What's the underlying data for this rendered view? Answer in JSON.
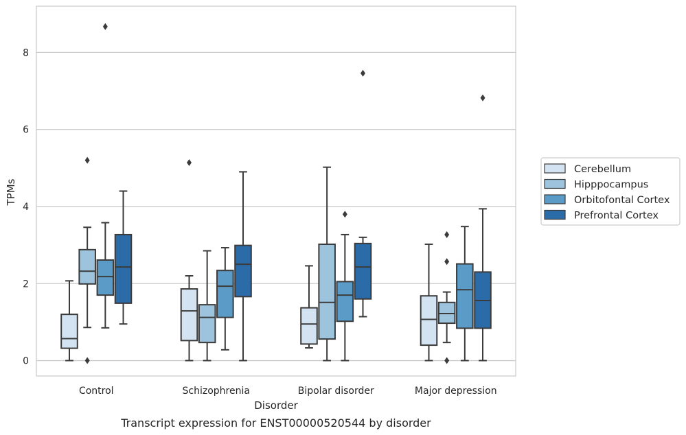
{
  "chart_data": {
    "type": "boxplot",
    "caption": "Transcript expression for ENST00000520544 by disorder",
    "xlabel": "Disorder",
    "ylabel": "TPMs",
    "ylim": [
      -0.4,
      9.2
    ],
    "yticks": [
      0,
      2,
      4,
      6,
      8
    ],
    "grid": "horizontal",
    "legend_position": "right",
    "categories": [
      "Control",
      "Schizophrenia",
      "Bipolar disorder",
      "Major depression"
    ],
    "series": [
      {
        "name": "Cerebellum",
        "color": "#d4e3f2",
        "boxes": [
          {
            "whislo": 0.0,
            "q1": 0.32,
            "med": 0.57,
            "q3": 1.2,
            "whishi": 2.07,
            "fliers": []
          },
          {
            "whislo": 0.0,
            "q1": 0.52,
            "med": 1.29,
            "q3": 1.86,
            "whishi": 2.2,
            "fliers": [
              5.14
            ]
          },
          {
            "whislo": 0.33,
            "q1": 0.43,
            "med": 0.95,
            "q3": 1.37,
            "whishi": 2.46,
            "fliers": []
          },
          {
            "whislo": 0.0,
            "q1": 0.4,
            "med": 1.07,
            "q3": 1.68,
            "whishi": 3.02,
            "fliers": []
          }
        ]
      },
      {
        "name": "Hipppocampus",
        "color": "#9dc3dd",
        "boxes": [
          {
            "whislo": 0.86,
            "q1": 1.99,
            "med": 2.32,
            "q3": 2.88,
            "whishi": 3.46,
            "fliers": [
              5.2,
              0.0
            ]
          },
          {
            "whislo": 0.0,
            "q1": 0.47,
            "med": 1.12,
            "q3": 1.45,
            "whishi": 2.85,
            "fliers": []
          },
          {
            "whislo": 0.0,
            "q1": 0.56,
            "med": 1.51,
            "q3": 3.02,
            "whishi": 5.02,
            "fliers": []
          },
          {
            "whislo": 0.47,
            "q1": 0.97,
            "med": 1.22,
            "q3": 1.51,
            "whishi": 1.78,
            "fliers": [
              3.27,
              2.57,
              0.0
            ]
          }
        ]
      },
      {
        "name": "Orbitofontal Cortex",
        "color": "#5a9bc7",
        "boxes": [
          {
            "whislo": 0.85,
            "q1": 1.7,
            "med": 2.18,
            "q3": 2.61,
            "whishi": 3.58,
            "fliers": [
              8.67
            ]
          },
          {
            "whislo": 0.28,
            "q1": 1.12,
            "med": 1.93,
            "q3": 2.34,
            "whishi": 2.93,
            "fliers": []
          },
          {
            "whislo": 0.0,
            "q1": 1.02,
            "med": 1.7,
            "q3": 2.05,
            "whishi": 3.27,
            "fliers": [
              3.8
            ]
          },
          {
            "whislo": 0.0,
            "q1": 0.84,
            "med": 1.84,
            "q3": 2.51,
            "whishi": 3.48,
            "fliers": []
          }
        ]
      },
      {
        "name": "Prefrontal Cortex",
        "color": "#2b6ba8",
        "boxes": [
          {
            "whislo": 0.95,
            "q1": 1.49,
            "med": 2.43,
            "q3": 3.27,
            "whishi": 4.4,
            "fliers": []
          },
          {
            "whislo": 0.0,
            "q1": 1.66,
            "med": 2.5,
            "q3": 2.99,
            "whishi": 4.9,
            "fliers": []
          },
          {
            "whislo": 1.14,
            "q1": 1.6,
            "med": 2.43,
            "q3": 3.04,
            "whishi": 3.2,
            "fliers": [
              7.46
            ]
          },
          {
            "whislo": 0.0,
            "q1": 0.84,
            "med": 1.56,
            "q3": 2.3,
            "whishi": 3.94,
            "fliers": [
              6.82
            ]
          }
        ]
      }
    ]
  }
}
